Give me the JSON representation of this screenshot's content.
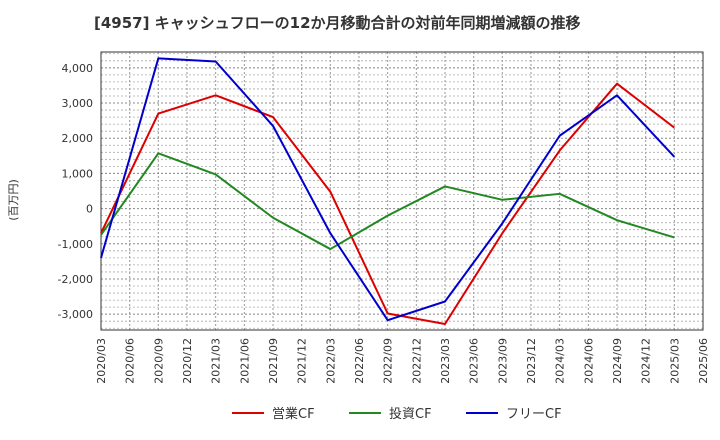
{
  "chart_data": {
    "type": "line",
    "title": "[4957]  キャッシュフローの12か月移動合計の対前年同期増減額の推移",
    "ylabel": "(百万円)",
    "xlabel": "",
    "ylim": [
      -3450,
      4450
    ],
    "yticks": [
      -3000,
      -2000,
      -1000,
      0,
      1000,
      2000,
      3000,
      4000
    ],
    "ytick_labels": [
      "-3,000",
      "-2,000",
      "-1,000",
      "0",
      "1,000",
      "2,000",
      "3,000",
      "4,000"
    ],
    "x": [
      "2020/03",
      "2020/06",
      "2020/09",
      "2020/12",
      "2021/03",
      "2021/06",
      "2021/09",
      "2021/12",
      "2022/03",
      "2022/06",
      "2022/09",
      "2022/12",
      "2023/03",
      "2023/06",
      "2023/09",
      "2023/12",
      "2024/03",
      "2024/06",
      "2024/09",
      "2024/12",
      "2025/03",
      "2025/06"
    ],
    "grid": true,
    "legend_position": "bottom",
    "series": [
      {
        "name": "営業CF",
        "color": "#dd0000",
        "points": [
          [
            "2020/03",
            -700
          ],
          [
            "2020/09",
            2700
          ],
          [
            "2021/03",
            3220
          ],
          [
            "2021/09",
            2600
          ],
          [
            "2022/03",
            480
          ],
          [
            "2022/09",
            -2980
          ],
          [
            "2023/03",
            -3280
          ],
          [
            "2023/09",
            -700
          ],
          [
            "2024/03",
            1650
          ],
          [
            "2024/09",
            3550
          ],
          [
            "2025/03",
            2300
          ]
        ]
      },
      {
        "name": "投資CF",
        "color": "#228822",
        "points": [
          [
            "2020/03",
            -750
          ],
          [
            "2020/09",
            1570
          ],
          [
            "2021/03",
            970
          ],
          [
            "2021/09",
            -260
          ],
          [
            "2022/03",
            -1150
          ],
          [
            "2022/09",
            -200
          ],
          [
            "2023/03",
            630
          ],
          [
            "2023/09",
            250
          ],
          [
            "2024/03",
            420
          ],
          [
            "2024/09",
            -330
          ],
          [
            "2025/03",
            -820
          ]
        ]
      },
      {
        "name": "フリーCF",
        "color": "#0000cc",
        "points": [
          [
            "2020/03",
            -1400
          ],
          [
            "2020/09",
            4270
          ],
          [
            "2021/03",
            4180
          ],
          [
            "2021/09",
            2350
          ],
          [
            "2022/03",
            -700
          ],
          [
            "2022/09",
            -3170
          ],
          [
            "2023/03",
            -2640
          ],
          [
            "2023/09",
            -420
          ],
          [
            "2024/03",
            2070
          ],
          [
            "2024/09",
            3220
          ],
          [
            "2025/03",
            1470
          ]
        ]
      }
    ]
  }
}
